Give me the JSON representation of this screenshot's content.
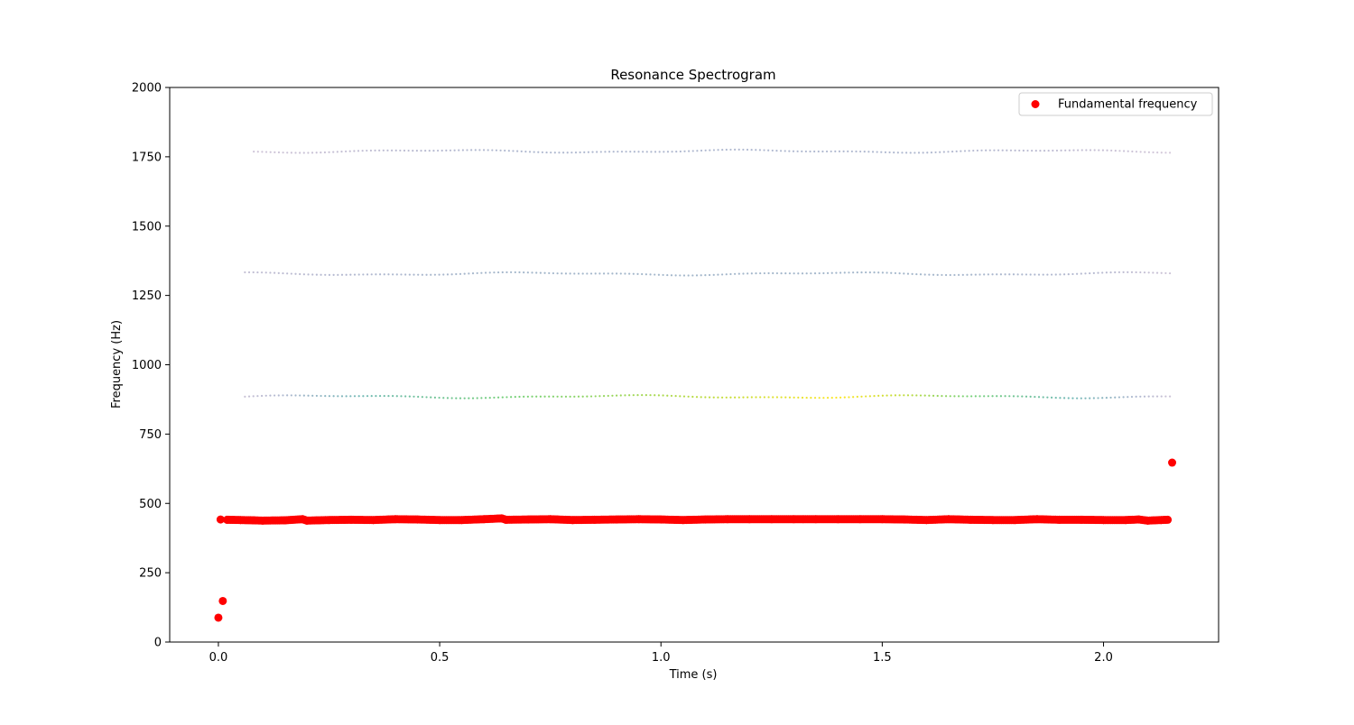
{
  "chart_data": {
    "type": "scatter",
    "title": "Resonance Spectrogram",
    "xlabel": "Time (s)",
    "ylabel": "Frequency (Hz)",
    "xlim": [
      -0.11,
      2.26
    ],
    "ylim": [
      0,
      2000
    ],
    "x_ticks": [
      0.0,
      0.5,
      1.0,
      1.5,
      2.0
    ],
    "x_tick_labels": [
      "0.0",
      "0.5",
      "1.0",
      "1.5",
      "2.0"
    ],
    "y_ticks": [
      0,
      250,
      500,
      750,
      1000,
      1250,
      1500,
      1750,
      2000
    ],
    "y_tick_labels": [
      "0",
      "250",
      "500",
      "750",
      "1000",
      "1250",
      "1500",
      "1750",
      "2000"
    ],
    "grid": false,
    "legend": {
      "position": "top-right",
      "entries": [
        {
          "label": "Fundamental frequency",
          "color": "#ff0000"
        }
      ]
    },
    "series": [
      {
        "name": "Fundamental frequency",
        "kind": "scatter",
        "color": "#ff0000",
        "points": [
          [
            0.0,
            88
          ],
          [
            0.01,
            148
          ],
          [
            0.005,
            442
          ],
          [
            0.02,
            441
          ],
          [
            0.05,
            440
          ],
          [
            0.08,
            439
          ],
          [
            0.1,
            438
          ],
          [
            0.15,
            439
          ],
          [
            0.19,
            443
          ],
          [
            0.2,
            438
          ],
          [
            0.25,
            440
          ],
          [
            0.3,
            441
          ],
          [
            0.35,
            440
          ],
          [
            0.4,
            443
          ],
          [
            0.45,
            442
          ],
          [
            0.5,
            440
          ],
          [
            0.55,
            440
          ],
          [
            0.6,
            443
          ],
          [
            0.64,
            446
          ],
          [
            0.65,
            441
          ],
          [
            0.7,
            442
          ],
          [
            0.75,
            443
          ],
          [
            0.8,
            440
          ],
          [
            0.85,
            441
          ],
          [
            0.9,
            442
          ],
          [
            0.95,
            443
          ],
          [
            1.0,
            442
          ],
          [
            1.05,
            440
          ],
          [
            1.1,
            442
          ],
          [
            1.15,
            443
          ],
          [
            1.2,
            443
          ],
          [
            1.25,
            443
          ],
          [
            1.3,
            443
          ],
          [
            1.35,
            443
          ],
          [
            1.4,
            443
          ],
          [
            1.45,
            443
          ],
          [
            1.5,
            443
          ],
          [
            1.55,
            442
          ],
          [
            1.6,
            440
          ],
          [
            1.65,
            443
          ],
          [
            1.7,
            441
          ],
          [
            1.75,
            440
          ],
          [
            1.8,
            440
          ],
          [
            1.85,
            443
          ],
          [
            1.9,
            441
          ],
          [
            1.95,
            441
          ],
          [
            2.0,
            440
          ],
          [
            2.05,
            440
          ],
          [
            2.08,
            442
          ],
          [
            2.1,
            438
          ],
          [
            2.13,
            440
          ],
          [
            2.145,
            441
          ],
          [
            2.155,
            647
          ]
        ]
      },
      {
        "name": "harmonic band 2",
        "kind": "band",
        "x_range": [
          0.06,
          2.15
        ],
        "mean": 885,
        "amplitude": [
          0.12,
          0.35,
          0.55,
          0.65,
          0.75,
          0.8,
          0.85,
          0.9,
          0.95,
          1.0,
          0.9,
          0.75,
          0.6,
          0.4,
          0.1
        ]
      },
      {
        "name": "harmonic band 3",
        "kind": "band",
        "x_range": [
          0.06,
          2.15
        ],
        "mean": 1328,
        "amplitude": [
          0.15,
          0.2,
          0.25,
          0.28,
          0.3,
          0.3,
          0.3,
          0.3,
          0.3,
          0.3,
          0.3,
          0.28,
          0.25,
          0.2,
          0.1
        ]
      },
      {
        "name": "harmonic band 4",
        "kind": "band",
        "x_range": [
          0.08,
          2.15
        ],
        "mean": 1770,
        "amplitude": [
          0.08,
          0.12,
          0.18,
          0.22,
          0.25,
          0.25,
          0.25,
          0.25,
          0.25,
          0.25,
          0.25,
          0.22,
          0.18,
          0.12,
          0.05
        ]
      }
    ]
  }
}
